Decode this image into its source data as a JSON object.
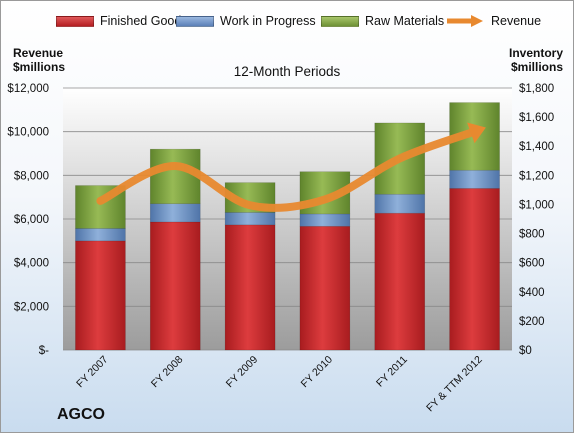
{
  "legend": {
    "finished_goods": "Finished Goods",
    "work_in_progress": "Work in Progress",
    "raw_materials": "Raw Materials",
    "revenue": "Revenue"
  },
  "left_axis_label": {
    "line1": "Revenue",
    "line2": "$millions"
  },
  "right_axis_label": {
    "line1": "Inventory",
    "line2": "$millions"
  },
  "subtitle": "12-Month Periods",
  "company": "AGCO",
  "colors": {
    "finished_goods": "#c0282a",
    "work_in_progress": "#6f94c8",
    "raw_materials": "#82a443",
    "revenue": "#e8892f"
  },
  "chart_data": {
    "type": "bar",
    "stacked": true,
    "categories": [
      "FY 2007",
      "FY 2008",
      "FY 2009",
      "FY 2010",
      "FY 2011",
      "FY & TTM 2012"
    ],
    "series": [
      {
        "name": "Finished Goods",
        "axis": "right",
        "values": [
          750,
          880,
          860,
          850,
          940,
          1110
        ]
      },
      {
        "name": "Work in Progress",
        "axis": "right",
        "values": [
          85,
          125,
          85,
          85,
          130,
          125
        ]
      },
      {
        "name": "Raw Materials",
        "axis": "right",
        "values": [
          295,
          375,
          205,
          290,
          490,
          465
        ]
      },
      {
        "name": "Revenue",
        "type": "line",
        "axis": "left",
        "values": [
          6828,
          8425,
          6630,
          6897,
          8773,
          10006
        ]
      }
    ],
    "left_axis": {
      "ticks": [
        "$-",
        "$2,000",
        "$4,000",
        "$6,000",
        "$8,000",
        "$10,000",
        "$12,000"
      ],
      "ylim": [
        0,
        12000
      ]
    },
    "right_axis": {
      "ticks": [
        "$0",
        "$200",
        "$400",
        "$600",
        "$800",
        "$1,000",
        "$1,200",
        "$1,400",
        "$1,600",
        "$1,800"
      ],
      "ylim": [
        0,
        1800
      ]
    },
    "grid": true,
    "legend_position": "top"
  }
}
